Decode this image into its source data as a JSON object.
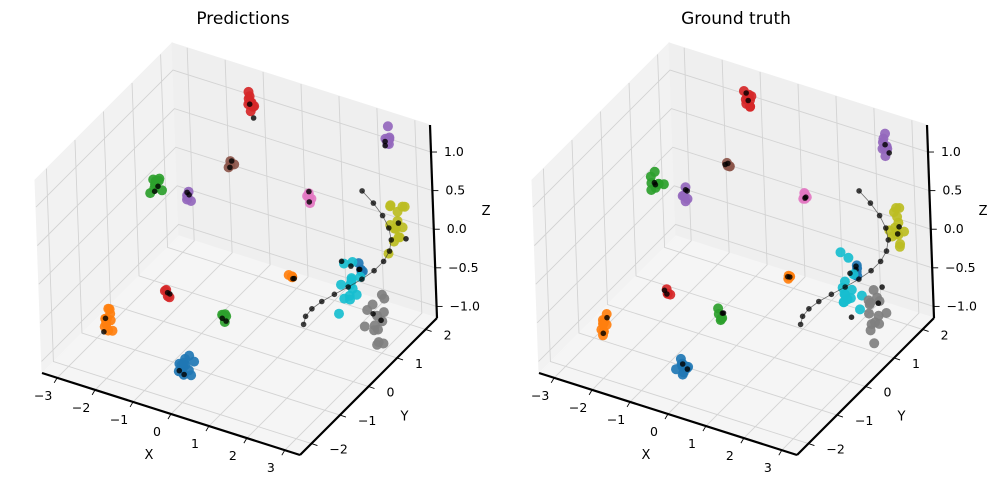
{
  "chart_data": [
    {
      "type": "scatter3d",
      "title": "Predictions",
      "xlabel": "X",
      "ylabel": "Y",
      "zlabel": "Z",
      "xlim": [
        -3.4,
        3.4
      ],
      "ylim": [
        -2.4,
        2.4
      ],
      "zlim": [
        -1.15,
        1.35
      ],
      "xticks": [
        "−3",
        "−2",
        "−1",
        "0",
        "1",
        "2",
        "3"
      ],
      "yticks": [
        "−2",
        "−1",
        "0",
        "1",
        "2"
      ],
      "zticks": [
        "−1.0",
        "−0.5",
        "0.0",
        "0.5",
        "1.0"
      ],
      "grid": true,
      "clusters": [
        {
          "color": "#d62728",
          "center": [
            -1.2,
            2.2,
            1.0
          ],
          "spread": [
            0.08,
            0.08,
            0.16
          ],
          "count": 9
        },
        {
          "color": "#9467bd",
          "center": [
            2.4,
            2.2,
            1.05
          ],
          "spread": [
            0.08,
            0.08,
            0.13
          ],
          "count": 8
        },
        {
          "color": "#8c564b",
          "center": [
            -1.4,
            1.7,
            0.35
          ],
          "spread": [
            0.06,
            0.06,
            0.05
          ],
          "count": 4
        },
        {
          "color": "#e377c2",
          "center": [
            0.8,
            1.5,
            0.35
          ],
          "spread": [
            0.06,
            0.06,
            0.07
          ],
          "count": 5
        },
        {
          "color": "#2ca02c",
          "center": [
            -2.8,
            1.0,
            0.15
          ],
          "spread": [
            0.12,
            0.1,
            0.12
          ],
          "count": 10
        },
        {
          "color": "#9467bd",
          "center": [
            -2.4,
            1.5,
            -0.15
          ],
          "spread": [
            0.06,
            0.06,
            0.08
          ],
          "count": 5
        },
        {
          "color": "#ff7f0e",
          "center": [
            0.7,
            1.0,
            -0.55
          ],
          "spread": [
            0.05,
            0.05,
            0.08
          ],
          "count": 4
        },
        {
          "color": "#d62728",
          "center": [
            -1.6,
            -0.3,
            -0.6
          ],
          "spread": [
            0.07,
            0.07,
            0.06
          ],
          "count": 4
        },
        {
          "color": "#2ca02c",
          "center": [
            0.1,
            -0.6,
            -0.55
          ],
          "spread": [
            0.06,
            0.06,
            0.08
          ],
          "count": 5
        },
        {
          "color": "#ff7f0e",
          "center": [
            -2.4,
            -1.4,
            -0.75
          ],
          "spread": [
            0.1,
            0.1,
            0.2
          ],
          "count": 12
        },
        {
          "color": "#1f77b4",
          "center": [
            -0.2,
            -1.6,
            -0.85
          ],
          "spread": [
            0.12,
            0.12,
            0.12
          ],
          "count": 12
        },
        {
          "color": "#1f77b4",
          "center": [
            2.0,
            1.6,
            -0.45
          ],
          "spread": [
            0.05,
            0.05,
            0.07
          ],
          "count": 4
        },
        {
          "color": "#17becf",
          "center": [
            2.0,
            1.3,
            -0.5
          ],
          "spread": [
            0.25,
            0.25,
            0.4
          ],
          "count": 14
        },
        {
          "color": "#bcbd22",
          "center": [
            2.9,
            1.8,
            0.2
          ],
          "spread": [
            0.2,
            0.2,
            0.35
          ],
          "count": 14
        },
        {
          "color": "#7f7f7f",
          "center": [
            2.8,
            1.2,
            -0.75
          ],
          "spread": [
            0.2,
            0.2,
            0.3
          ],
          "count": 14
        }
      ],
      "skeleton_color": "#000000"
    },
    {
      "type": "scatter3d",
      "title": "Ground truth",
      "xlabel": "X",
      "ylabel": "Y",
      "zlabel": "Z",
      "xlim": [
        -3.4,
        3.4
      ],
      "ylim": [
        -2.4,
        2.4
      ],
      "zlim": [
        -1.15,
        1.35
      ],
      "xticks": [
        "−3",
        "−2",
        "−1",
        "0",
        "1",
        "2",
        "3"
      ],
      "yticks": [
        "−2",
        "−1",
        "0",
        "1",
        "2"
      ],
      "zticks": [
        "−1.0",
        "−0.5",
        "0.0",
        "0.5",
        "1.0"
      ],
      "grid": true,
      "clusters": [
        {
          "color": "#d62728",
          "center": [
            -1.2,
            2.2,
            1.0
          ],
          "spread": [
            0.08,
            0.08,
            0.16
          ],
          "count": 9
        },
        {
          "color": "#9467bd",
          "center": [
            2.4,
            2.2,
            1.0
          ],
          "spread": [
            0.08,
            0.08,
            0.13
          ],
          "count": 8
        },
        {
          "color": "#8c564b",
          "center": [
            -1.4,
            1.7,
            0.35
          ],
          "spread": [
            0.06,
            0.06,
            0.05
          ],
          "count": 4
        },
        {
          "color": "#e377c2",
          "center": [
            0.8,
            1.5,
            0.35
          ],
          "spread": [
            0.06,
            0.06,
            0.07
          ],
          "count": 5
        },
        {
          "color": "#2ca02c",
          "center": [
            -2.8,
            1.0,
            0.15
          ],
          "spread": [
            0.12,
            0.1,
            0.1
          ],
          "count": 8
        },
        {
          "color": "#9467bd",
          "center": [
            -2.4,
            1.5,
            -0.1
          ],
          "spread": [
            0.06,
            0.06,
            0.08
          ],
          "count": 5
        },
        {
          "color": "#ff7f0e",
          "center": [
            0.7,
            1.0,
            -0.5
          ],
          "spread": [
            0.05,
            0.05,
            0.08
          ],
          "count": 4
        },
        {
          "color": "#d62728",
          "center": [
            -1.6,
            -0.3,
            -0.6
          ],
          "spread": [
            0.07,
            0.07,
            0.06
          ],
          "count": 4
        },
        {
          "color": "#2ca02c",
          "center": [
            0.1,
            -0.6,
            -0.55
          ],
          "spread": [
            0.06,
            0.06,
            0.08
          ],
          "count": 5
        },
        {
          "color": "#ff7f0e",
          "center": [
            -2.4,
            -1.4,
            -0.75
          ],
          "spread": [
            0.1,
            0.1,
            0.18
          ],
          "count": 10
        },
        {
          "color": "#1f77b4",
          "center": [
            -0.2,
            -1.6,
            -0.85
          ],
          "spread": [
            0.12,
            0.12,
            0.12
          ],
          "count": 10
        },
        {
          "color": "#1f77b4",
          "center": [
            2.0,
            1.6,
            -0.45
          ],
          "spread": [
            0.06,
            0.06,
            0.07
          ],
          "count": 5
        },
        {
          "color": "#17becf",
          "center": [
            2.0,
            1.3,
            -0.55
          ],
          "spread": [
            0.25,
            0.25,
            0.4
          ],
          "count": 14
        },
        {
          "color": "#bcbd22",
          "center": [
            2.9,
            1.8,
            0.2
          ],
          "spread": [
            0.2,
            0.2,
            0.35
          ],
          "count": 14
        },
        {
          "color": "#7f7f7f",
          "center": [
            2.8,
            1.2,
            -0.75
          ],
          "spread": [
            0.2,
            0.2,
            0.3
          ],
          "count": 14
        }
      ],
      "skeleton_color": "#000000"
    }
  ]
}
